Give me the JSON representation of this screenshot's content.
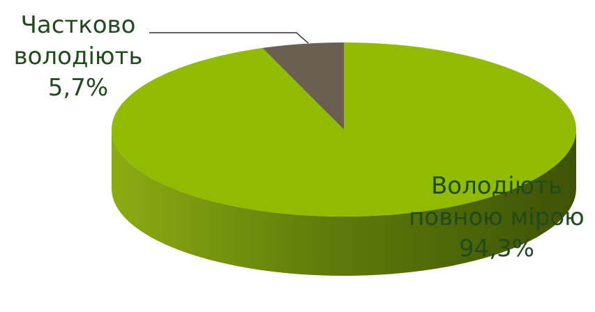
{
  "chart_data": {
    "type": "pie",
    "title": "",
    "categories": [
      "Володіють повною мірою",
      "Частково володіють"
    ],
    "values": [
      94.3,
      5.7
    ],
    "colors": [
      "#8fbc00",
      "#6b6050"
    ],
    "side_colors": [
      "#6f8f0a",
      "#4e463a"
    ],
    "legend": "none",
    "labels": [
      {
        "lines": [
          "Володіють",
          "повною мірою"
        ],
        "value_text": "94,3%"
      },
      {
        "lines": [
          "Частково",
          "володіють"
        ],
        "value_text": "5,7%"
      }
    ]
  }
}
